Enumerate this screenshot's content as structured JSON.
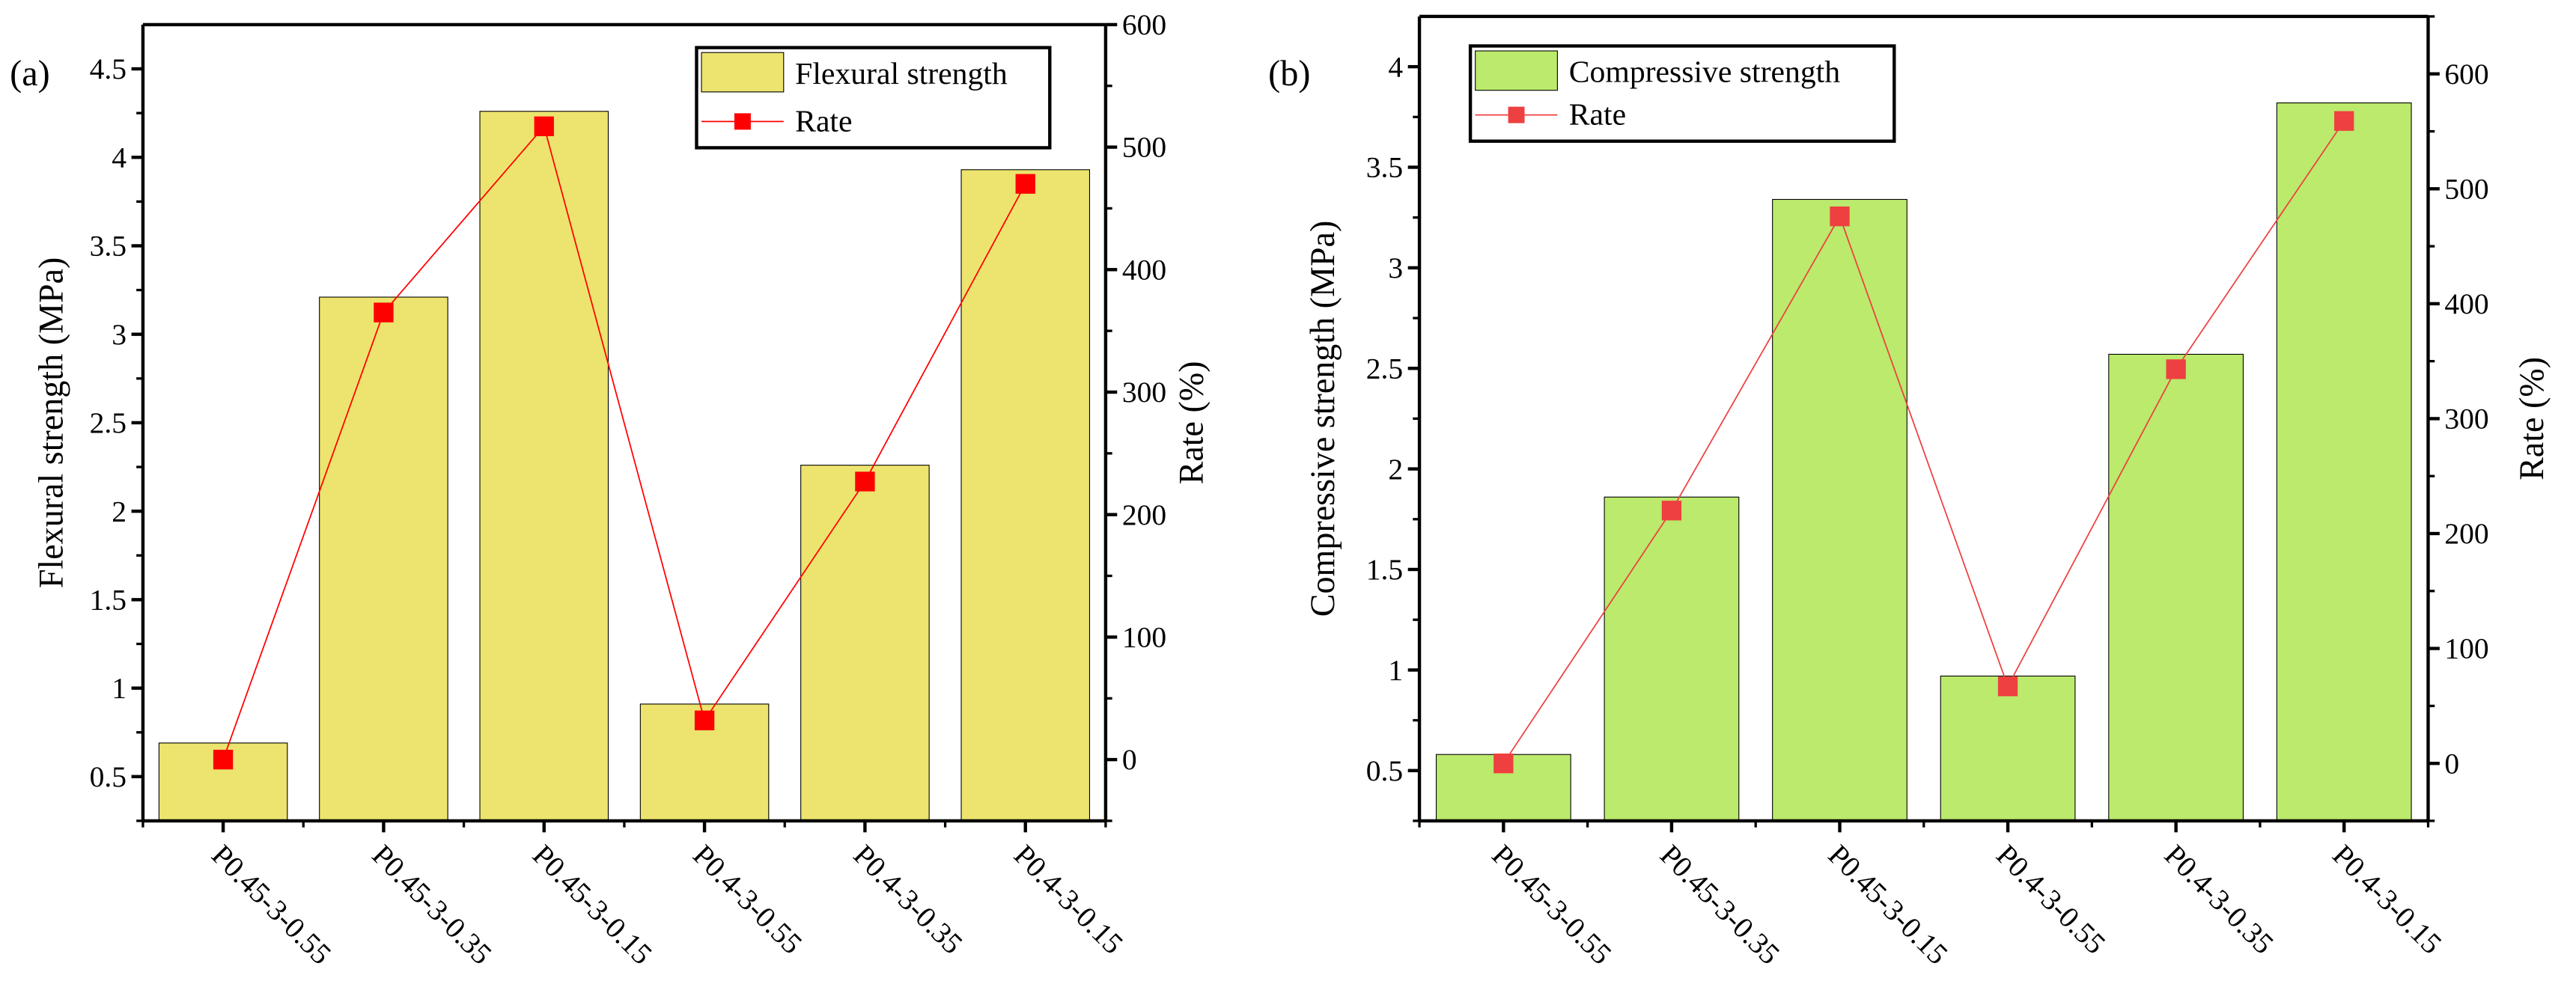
{
  "chart_data": [
    {
      "type": "bar",
      "panel_label": "(a)",
      "categories": [
        "P0.45-3-0.55",
        "P0.45-3-0.35",
        "P0.45-3-0.15",
        "P0.4-3-0.55",
        "P0.4-3-0.35",
        "P0.4-3-0.15"
      ],
      "series": [
        {
          "name": "Flexural strength",
          "type": "bar",
          "axis": "left",
          "color": "#ece46e",
          "values": [
            0.69,
            3.21,
            4.26,
            0.91,
            2.26,
            3.93
          ]
        },
        {
          "name": "Rate",
          "type": "line",
          "axis": "right",
          "color": "#ff0000",
          "values": [
            0,
            365,
            517,
            32,
            227,
            470
          ]
        }
      ],
      "ylabel": "Flexural strength (MPa)",
      "y2label": "Rate (%)",
      "ylim": [
        0.25,
        4.75
      ],
      "yticks": [
        0.5,
        1.0,
        1.5,
        2.0,
        2.5,
        3.0,
        3.5,
        4.0,
        4.5
      ],
      "y2lim": [
        -50,
        600
      ],
      "y2ticks": [
        0,
        100,
        200,
        300,
        400,
        500,
        600
      ],
      "legend": "top-right",
      "grid": false
    },
    {
      "type": "bar",
      "panel_label": "(b)",
      "categories": [
        "P0.45-3-0.55",
        "P0.45-3-0.35",
        "P0.45-3-0.15",
        "P0.4-3-0.55",
        "P0.4-3-0.35",
        "P0.4-3-0.15"
      ],
      "series": [
        {
          "name": "Compressive strength",
          "type": "bar",
          "axis": "left",
          "color": "#bbea6c",
          "values": [
            0.58,
            1.86,
            3.34,
            0.97,
            2.57,
            3.82
          ]
        },
        {
          "name": "Rate",
          "type": "line",
          "axis": "right",
          "color": "#ee4040",
          "values": [
            0,
            220,
            476,
            67,
            343,
            559
          ]
        }
      ],
      "ylabel": "Compressive strength (MPa)",
      "y2label": "Rate (%)",
      "ylim": [
        0.25,
        4.25
      ],
      "yticks": [
        0.5,
        1.0,
        1.5,
        2.0,
        2.5,
        3.0,
        3.5,
        4.0
      ],
      "y2lim": [
        -50,
        650
      ],
      "y2ticks": [
        0,
        100,
        200,
        300,
        400,
        500,
        600
      ],
      "legend": "top-left",
      "grid": false
    }
  ]
}
